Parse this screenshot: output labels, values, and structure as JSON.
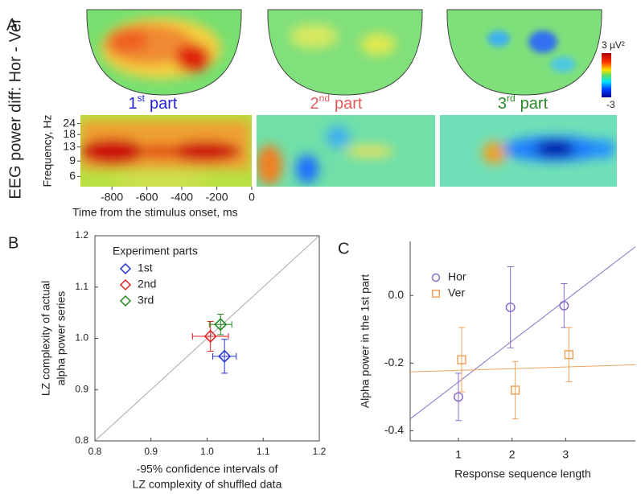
{
  "chart_data": [
    {
      "type": "heatmap",
      "panel": "A",
      "title": "EEG power diff: Hor - Ver",
      "parts": [
        {
          "n": "1",
          "sup": "st",
          "word": "part",
          "color": "#2222dd"
        },
        {
          "n": "2",
          "sup": "nd",
          "word": "part",
          "color": "#e05a5a"
        },
        {
          "n": "3",
          "sup": "rd",
          "word": "part",
          "color": "#2a8a2a"
        }
      ],
      "clim": [
        -3,
        3
      ],
      "cticks": [
        {
          "value": 3,
          "label": "3 µV²"
        },
        -3
      ],
      "ylabel": "Frequency, Hz",
      "xlabel": "Time from the stimulus onset, ms",
      "xlim": [
        -980,
        0
      ],
      "xticks": [
        -800,
        -600,
        -400,
        -200,
        0
      ],
      "ylog": true,
      "ylim": [
        4.6,
        30
      ],
      "yticks": [
        24,
        18,
        13,
        9,
        6
      ]
    },
    {
      "type": "scatter",
      "panel": "B",
      "legend_title": "Experiment parts",
      "diagonal": true,
      "frame": true,
      "xlabel": [
        "-95% confidence intervals of",
        "LZ complexity of shuffled data"
      ],
      "ylabel": [
        "LZ complexity of actual",
        "alpha power series"
      ],
      "xlim": [
        0.8,
        1.2
      ],
      "ylim": [
        0.8,
        1.2
      ],
      "xticks": [
        0.8,
        0.9,
        {
          "value": 1,
          "label": "1.0"
        },
        1.1,
        1.2
      ],
      "yticks": [
        0.8,
        0.9,
        {
          "value": 1,
          "label": "1.0"
        },
        1.1,
        1.2
      ],
      "series": [
        {
          "name": "1st",
          "color": "#2233cc",
          "marker": "diamond",
          "x": [
            1.031
          ],
          "values": [
            0.965
          ],
          "xerr": [
            0.021
          ],
          "yerr": [
            0.033
          ]
        },
        {
          "name": "2nd",
          "color": "#dd2222",
          "marker": "diamond",
          "x": [
            1.006
          ],
          "values": [
            1.004
          ],
          "xerr": [
            0.032
          ],
          "yerr": [
            0.029
          ]
        },
        {
          "name": "3rd",
          "color": "#228822",
          "marker": "diamond",
          "x": [
            1.024
          ],
          "values": [
            1.027
          ],
          "xerr": [
            0.02
          ],
          "yerr": [
            0.02
          ]
        }
      ]
    },
    {
      "type": "scatter",
      "panel": "C",
      "frame": false,
      "xlabel": [
        "Response sequence length"
      ],
      "ylabel": [
        "Alpha power in the 1st part"
      ],
      "xlim": [
        0.1,
        4.3
      ],
      "ylim": [
        -0.43,
        0.16
      ],
      "xticks": [
        1,
        2,
        3
      ],
      "yticks": [
        {
          "value": 0,
          "label": "0.0"
        },
        -0.2,
        -0.4
      ],
      "series": [
        {
          "name": "Hor",
          "color": "#8a6fc8",
          "marker": "circle",
          "x": [
            1,
            1.97,
            2.97
          ],
          "values": [
            -0.3,
            -0.035,
            -0.03
          ],
          "yerr": [
            0.07,
            0.12,
            0.065
          ],
          "fit": {
            "x": [
              0.1,
              4.3
            ],
            "y": [
              -0.365,
              0.144
            ]
          }
        },
        {
          "name": "Ver",
          "color": "#f0a45c",
          "marker": "square",
          "x": [
            1.06,
            2.06,
            3.06
          ],
          "values": [
            -0.19,
            -0.28,
            -0.175
          ],
          "yerr": [
            0.095,
            0.085,
            0.08
          ],
          "fit": {
            "x": [
              0.1,
              4.3
            ],
            "y": [
              -0.226,
              -0.205
            ]
          }
        }
      ]
    }
  ]
}
